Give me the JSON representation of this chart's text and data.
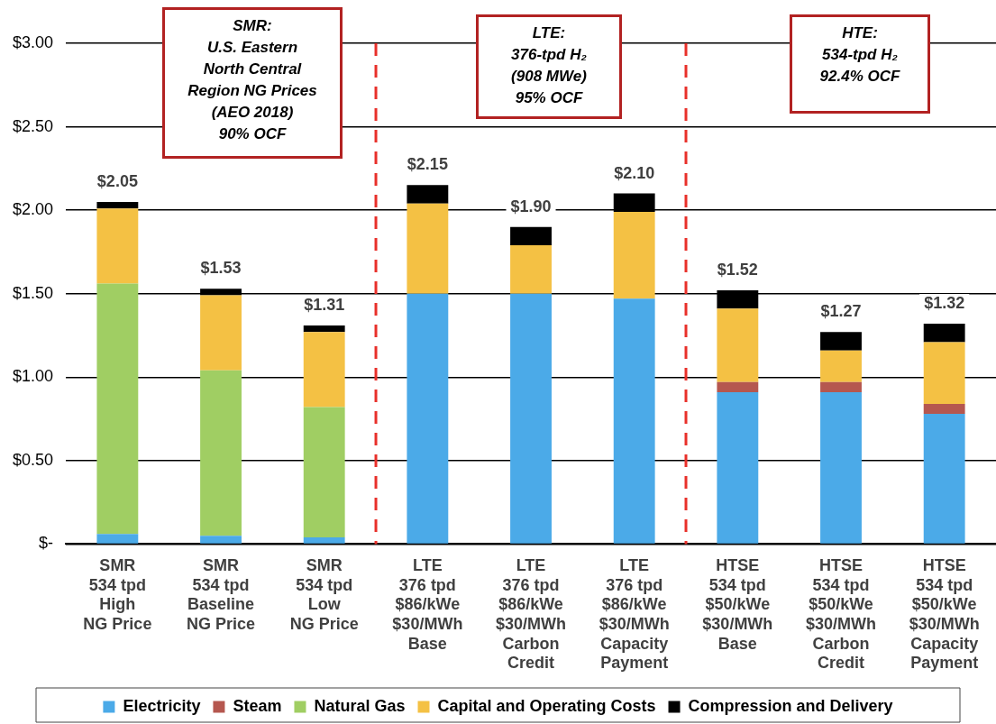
{
  "chart_data": {
    "type": "bar",
    "stacked": true,
    "categories": [
      "SMR\n534 tpd\nHigh\nNG Price",
      "SMR\n534 tpd\nBaseline\nNG Price",
      "SMR\n534 tpd\nLow\nNG Price",
      "LTE\n376 tpd\n$86/kWe\n$30/MWh\nBase",
      "LTE\n376 tpd\n$86/kWe\n$30/MWh\nCarbon\nCredit",
      "LTE\n376 tpd\n$86/kWe\n$30/MWh\nCapacity\nPayment",
      "HTSE\n534 tpd\n$50/kWe\n$30/MWh\nBase",
      "HTSE\n534 tpd\n$50/kWe\n$30/MWh\nCarbon\nCredit",
      "HTSE\n534 tpd\n$50/kWe\n$30/MWh\nCapacity\nPayment"
    ],
    "series": [
      {
        "name": "Electricity",
        "color": "#4baae8",
        "values": [
          0.06,
          0.05,
          0.04,
          1.5,
          1.5,
          1.47,
          0.91,
          0.91,
          0.78
        ]
      },
      {
        "name": "Steam",
        "color": "#b5574f",
        "values": [
          0,
          0,
          0,
          0,
          0,
          0,
          0.06,
          0.06,
          0.06
        ]
      },
      {
        "name": "Natural Gas",
        "color": "#a0ce63",
        "values": [
          1.5,
          0.99,
          0.78,
          0,
          0,
          0,
          0,
          0,
          0
        ]
      },
      {
        "name": "Capital and Operating Costs",
        "color": "#f4c144",
        "values": [
          0.45,
          0.45,
          0.45,
          0.54,
          0.29,
          0.52,
          0.44,
          0.19,
          0.37
        ]
      },
      {
        "name": "Compression and Delivery",
        "color": "#000000",
        "values": [
          0.04,
          0.04,
          0.04,
          0.11,
          0.11,
          0.11,
          0.11,
          0.11,
          0.11
        ]
      }
    ],
    "totals": [
      "$2.05",
      "$1.53",
      "$1.31",
      "$2.15",
      "$1.90",
      "$2.10",
      "$1.52",
      "$1.27",
      "$1.32"
    ],
    "ylim": [
      0,
      3
    ],
    "yticks": [
      {
        "value": 0,
        "label": "$-"
      },
      {
        "value": 0.5,
        "label": "$0.50"
      },
      {
        "value": 1,
        "label": "$1.00"
      },
      {
        "value": 1.5,
        "label": "$1.50"
      },
      {
        "value": 2,
        "label": "$2.00"
      },
      {
        "value": 2.5,
        "label": "$2.50"
      },
      {
        "value": 3,
        "label": "$3.00"
      }
    ],
    "grid": "y",
    "legend": "bottom",
    "annotations": [
      "SMR:\nU.S. Eastern\nNorth Central\nRegion NG Prices\n(AEO 2018)\n90% OCF",
      "LTE:\n376-tpd H₂\n(908 MWe)\n95% OCF",
      "HTE:\n534-tpd H₂\n92.4% OCF"
    ]
  }
}
